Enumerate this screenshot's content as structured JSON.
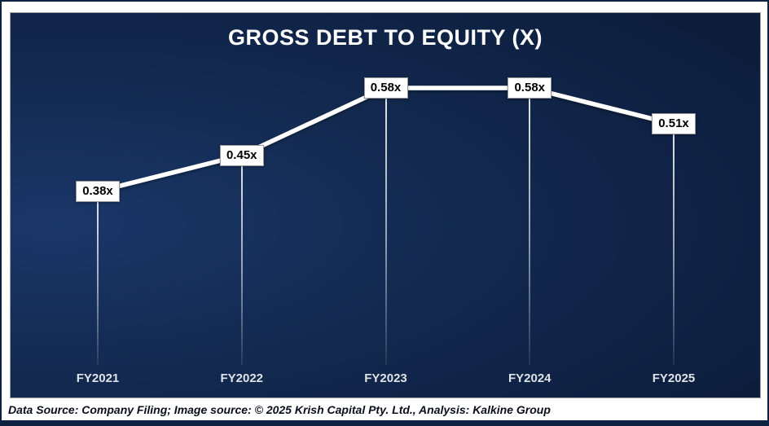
{
  "chart_data": {
    "type": "line",
    "title": "GROSS DEBT TO EQUITY (X)",
    "categories": [
      "FY2021",
      "FY2022",
      "FY2023",
      "FY2024",
      "FY2025"
    ],
    "values": [
      0.38,
      0.45,
      0.58,
      0.58,
      0.51
    ],
    "data_labels": [
      "0.38x",
      "0.45x",
      "0.58x",
      "0.58x",
      "0.51x"
    ],
    "xlabel": "",
    "ylabel": "",
    "ylim": [
      0,
      0.72
    ],
    "grid": false,
    "legend": false,
    "line_color": "#ffffff",
    "label_box_bg": "#ffffff",
    "label_text_color": "#000000",
    "axis_label_color": "#dfe3e8",
    "background_colors": [
      "#1a3769",
      "#13294f",
      "#0b1a35"
    ]
  },
  "footer": {
    "text": "Data Source: Company Filing; Image source: © 2025 Krish Capital Pty. Ltd., Analysis: Kalkine Group"
  }
}
